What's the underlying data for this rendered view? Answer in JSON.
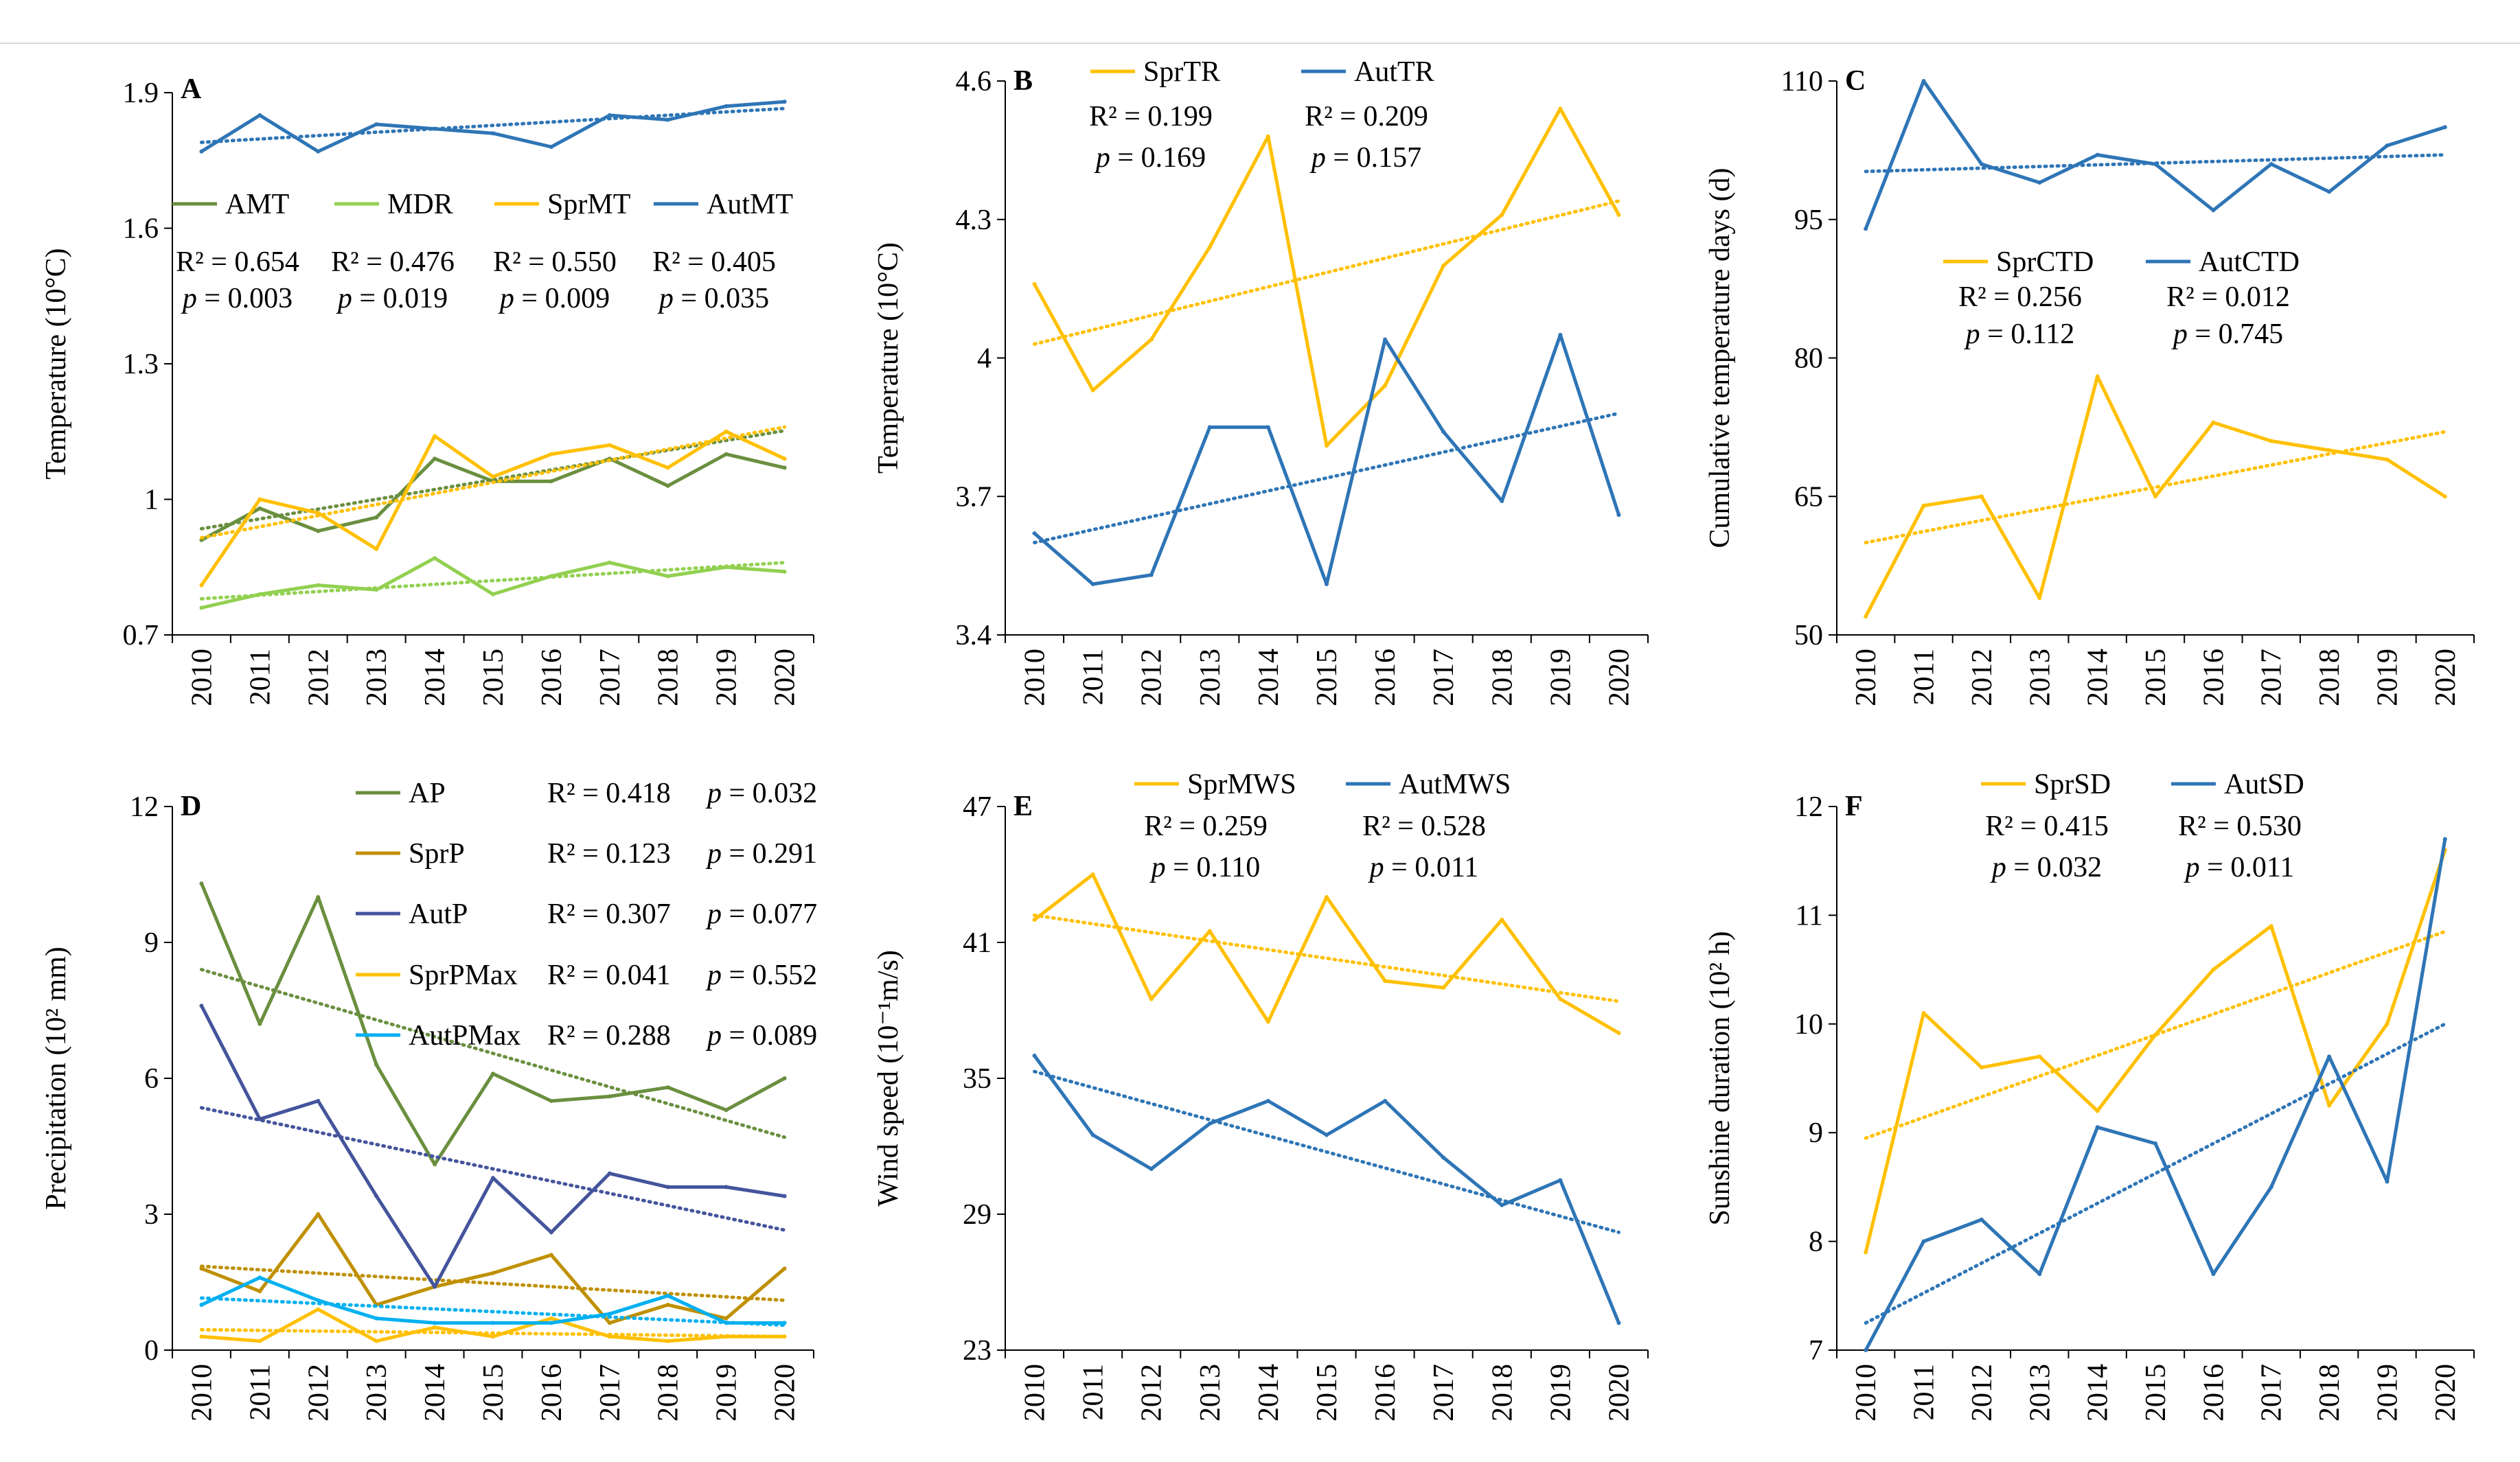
{
  "figure": {
    "panel_count": 6,
    "years": [
      "2010",
      "2011",
      "2012",
      "2013",
      "2014",
      "2015",
      "2016",
      "2017",
      "2018",
      "2019",
      "2020"
    ]
  },
  "colors": {
    "green": "#6a8f3f",
    "lightgreen": "#92d050",
    "orange": "#ffc000",
    "blue": "#2e75b6",
    "purple": "#44549c",
    "brown": "#bf9000",
    "cyan": "#00b0f0"
  },
  "chart_data": [
    {
      "id": "A",
      "type": "line",
      "panel_label": "A",
      "title": "",
      "xlabel": "",
      "ylabel": "Temperature (10°C)",
      "categories": [
        "2010",
        "2011",
        "2012",
        "2013",
        "2014",
        "2015",
        "2016",
        "2017",
        "2018",
        "2019",
        "2020"
      ],
      "ylim": [
        0.7,
        1.9
      ],
      "yticks": [
        "0.7",
        "1",
        "1.3",
        "1.6",
        "1.9"
      ],
      "ytick_values": [
        0.7,
        1.0,
        1.3,
        1.6,
        1.9
      ],
      "series": [
        {
          "name": "AMT",
          "color": "#6a8f3f",
          "values": [
            0.91,
            0.98,
            0.93,
            0.96,
            1.09,
            1.04,
            1.04,
            1.09,
            1.03,
            1.1,
            1.07
          ],
          "trend": [
            0.935,
            1.152
          ]
        },
        {
          "name": "MDR",
          "color": "#92d050",
          "values": [
            0.76,
            0.79,
            0.81,
            0.8,
            0.87,
            0.79,
            0.83,
            0.86,
            0.83,
            0.85,
            0.84
          ],
          "trend": [
            0.78,
            0.86
          ]
        },
        {
          "name": "SprMT",
          "color": "#ffc000",
          "values": [
            0.81,
            1.0,
            0.97,
            0.89,
            1.14,
            1.05,
            1.1,
            1.12,
            1.07,
            1.15,
            1.09
          ],
          "trend": [
            0.915,
            1.16
          ]
        },
        {
          "name": "AutMT",
          "color": "#2e75b6",
          "values": [
            1.77,
            1.85,
            1.77,
            1.83,
            1.82,
            1.81,
            1.78,
            1.85,
            1.84,
            1.87,
            1.88
          ],
          "trend": [
            1.79,
            1.865
          ]
        }
      ],
      "stats": [
        {
          "r2": "R² = 0.654",
          "p": "= 0.003"
        },
        {
          "r2": "R² = 0.476",
          "p": "= 0.019"
        },
        {
          "r2": "R² = 0.550",
          "p": "= 0.009"
        },
        {
          "r2": "R² = 0.405",
          "p": "= 0.035"
        }
      ]
    },
    {
      "id": "B",
      "type": "line",
      "panel_label": "B",
      "title": "",
      "xlabel": "",
      "ylabel": "Temperature (10°C)",
      "categories": [
        "2010",
        "2011",
        "2012",
        "2013",
        "2014",
        "2015",
        "2016",
        "2017",
        "2018",
        "2019",
        "2020"
      ],
      "ylim": [
        3.4,
        4.6
      ],
      "yticks": [
        "3.4",
        "3.7",
        "4",
        "4.3",
        "4.6"
      ],
      "ytick_values": [
        3.4,
        3.7,
        4.0,
        4.3,
        4.6
      ],
      "series": [
        {
          "name": "SprTR",
          "color": "#ffc000",
          "values": [
            4.16,
            3.93,
            4.04,
            4.24,
            4.48,
            3.81,
            3.94,
            4.2,
            4.31,
            4.54,
            4.31
          ],
          "trend": [
            4.03,
            4.34
          ]
        },
        {
          "name": "AutTR",
          "color": "#2e75b6",
          "values": [
            3.62,
            3.51,
            3.53,
            3.85,
            3.85,
            3.51,
            4.04,
            3.84,
            3.69,
            4.05,
            3.66
          ],
          "trend": [
            3.6,
            3.88
          ]
        }
      ],
      "stats": [
        {
          "r2": "R² = 0.199",
          "p": "= 0.169"
        },
        {
          "r2": "R² = 0.209",
          "p": "= 0.157"
        }
      ]
    },
    {
      "id": "C",
      "type": "line",
      "panel_label": "C",
      "title": "",
      "xlabel": "",
      "ylabel": "Cumulative temperature days (d)",
      "categories": [
        "2010",
        "2011",
        "2012",
        "2013",
        "2014",
        "2015",
        "2016",
        "2017",
        "2018",
        "2019",
        "2020"
      ],
      "ylim": [
        50,
        110
      ],
      "yticks": [
        "50",
        "65",
        "80",
        "95",
        "110"
      ],
      "ytick_values": [
        50,
        65,
        80,
        95,
        110
      ],
      "series": [
        {
          "name": "SprCTD",
          "color": "#ffc000",
          "values": [
            52,
            64,
            65,
            54,
            78,
            65,
            73,
            71,
            70,
            69,
            65
          ],
          "trend": [
            60,
            72
          ]
        },
        {
          "name": "AutCTD",
          "color": "#2e75b6",
          "values": [
            94,
            110,
            101,
            99,
            102,
            101,
            96,
            101,
            98,
            103,
            105
          ],
          "trend": [
            100.2,
            102
          ]
        }
      ],
      "stats": [
        {
          "r2": "R² = 0.256",
          "p": "= 0.112"
        },
        {
          "r2": "R² = 0.012",
          "p": "= 0.745"
        }
      ]
    },
    {
      "id": "D",
      "type": "line",
      "panel_label": "D",
      "title": "",
      "xlabel": "",
      "ylabel": "Precipitation (10² mm)",
      "categories": [
        "2010",
        "2011",
        "2012",
        "2013",
        "2014",
        "2015",
        "2016",
        "2017",
        "2018",
        "2019",
        "2020"
      ],
      "ylim": [
        0,
        12
      ],
      "yticks": [
        "0",
        "3",
        "6",
        "9",
        "12"
      ],
      "ytick_values": [
        0,
        3,
        6,
        9,
        12
      ],
      "series": [
        {
          "name": "AP",
          "color": "#6a8f3f",
          "values": [
            10.3,
            7.2,
            10.0,
            6.3,
            4.1,
            6.1,
            5.5,
            5.6,
            5.8,
            5.3,
            6.0
          ],
          "trend": [
            8.4,
            4.7
          ]
        },
        {
          "name": "SprP",
          "color": "#bf9000",
          "values": [
            1.8,
            1.3,
            3.0,
            1.0,
            1.4,
            1.7,
            2.1,
            0.6,
            1.0,
            0.7,
            1.8
          ],
          "trend": [
            1.85,
            1.1
          ]
        },
        {
          "name": "AutP",
          "color": "#44549c",
          "values": [
            7.6,
            5.1,
            5.5,
            3.4,
            1.4,
            3.8,
            2.6,
            3.9,
            3.6,
            3.6,
            3.4
          ],
          "trend": [
            5.35,
            2.65
          ]
        },
        {
          "name": "SprPMax",
          "color": "#ffc000",
          "values": [
            0.3,
            0.2,
            0.9,
            0.2,
            0.5,
            0.3,
            0.7,
            0.3,
            0.2,
            0.3,
            0.3
          ],
          "trend": [
            0.45,
            0.3
          ]
        },
        {
          "name": "AutPMax",
          "color": "#00b0f0",
          "values": [
            1.0,
            1.6,
            1.1,
            0.7,
            0.6,
            0.6,
            0.6,
            0.8,
            1.2,
            0.6,
            0.6
          ],
          "trend": [
            1.15,
            0.55
          ]
        }
      ],
      "stats": [
        {
          "r2": "R² = 0.418",
          "p": "= 0.032"
        },
        {
          "r2": "R² = 0.123",
          "p": "= 0.291"
        },
        {
          "r2": "R² = 0.307",
          "p": "= 0.077"
        },
        {
          "r2": "R² = 0.041",
          "p": "= 0.552"
        },
        {
          "r2": "R² = 0.288",
          "p": "= 0.089"
        }
      ]
    },
    {
      "id": "E",
      "type": "line",
      "panel_label": "E",
      "title": "",
      "xlabel": "",
      "ylabel": "Wind speed  (10⁻¹m/s)",
      "categories": [
        "2010",
        "2011",
        "2012",
        "2013",
        "2014",
        "2015",
        "2016",
        "2017",
        "2018",
        "2019",
        "2020"
      ],
      "ylim": [
        23,
        47
      ],
      "yticks": [
        "23",
        "29",
        "35",
        "41",
        "47"
      ],
      "ytick_values": [
        23,
        29,
        35,
        41,
        47
      ],
      "series": [
        {
          "name": "SprMWS",
          "color": "#ffc000",
          "values": [
            42.0,
            44.0,
            38.5,
            41.5,
            37.5,
            43.0,
            39.3,
            39.0,
            42.0,
            38.5,
            37.0
          ],
          "trend": [
            42.2,
            38.4
          ]
        },
        {
          "name": "AutMWS",
          "color": "#2e75b6",
          "values": [
            36.0,
            32.5,
            31.0,
            33.0,
            34.0,
            32.5,
            34.0,
            31.5,
            29.4,
            30.5,
            24.2
          ],
          "trend": [
            35.3,
            28.2
          ]
        }
      ],
      "stats": [
        {
          "r2": "R² = 0.259",
          "p": "= 0.110"
        },
        {
          "r2": "R² = 0.528",
          "p": "= 0.011"
        }
      ]
    },
    {
      "id": "F",
      "type": "line",
      "panel_label": "F",
      "title": "",
      "xlabel": "",
      "ylabel": "Sunshine duration (10² h)",
      "categories": [
        "2010",
        "2011",
        "2012",
        "2013",
        "2014",
        "2015",
        "2016",
        "2017",
        "2018",
        "2019",
        "2020"
      ],
      "ylim": [
        7,
        12
      ],
      "yticks": [
        "7",
        "8",
        "9",
        "10",
        "11",
        "12"
      ],
      "ytick_values": [
        7,
        8,
        9,
        10,
        11,
        12
      ],
      "series": [
        {
          "name": "SprSD",
          "color": "#ffc000",
          "values": [
            7.9,
            10.1,
            9.6,
            9.7,
            9.2,
            9.9,
            10.5,
            10.9,
            9.25,
            10.0,
            11.6
          ],
          "trend": [
            8.95,
            10.85
          ]
        },
        {
          "name": "AutSD",
          "color": "#2e75b6",
          "values": [
            7.0,
            8.0,
            8.2,
            7.7,
            9.05,
            8.9,
            7.7,
            8.5,
            9.7,
            8.55,
            11.7
          ],
          "trend": [
            7.25,
            10.0
          ]
        }
      ],
      "stats": [
        {
          "r2": "R² = 0.415",
          "p": "= 0.032"
        },
        {
          "r2": "R² = 0.530",
          "p": "= 0.011"
        }
      ]
    }
  ]
}
